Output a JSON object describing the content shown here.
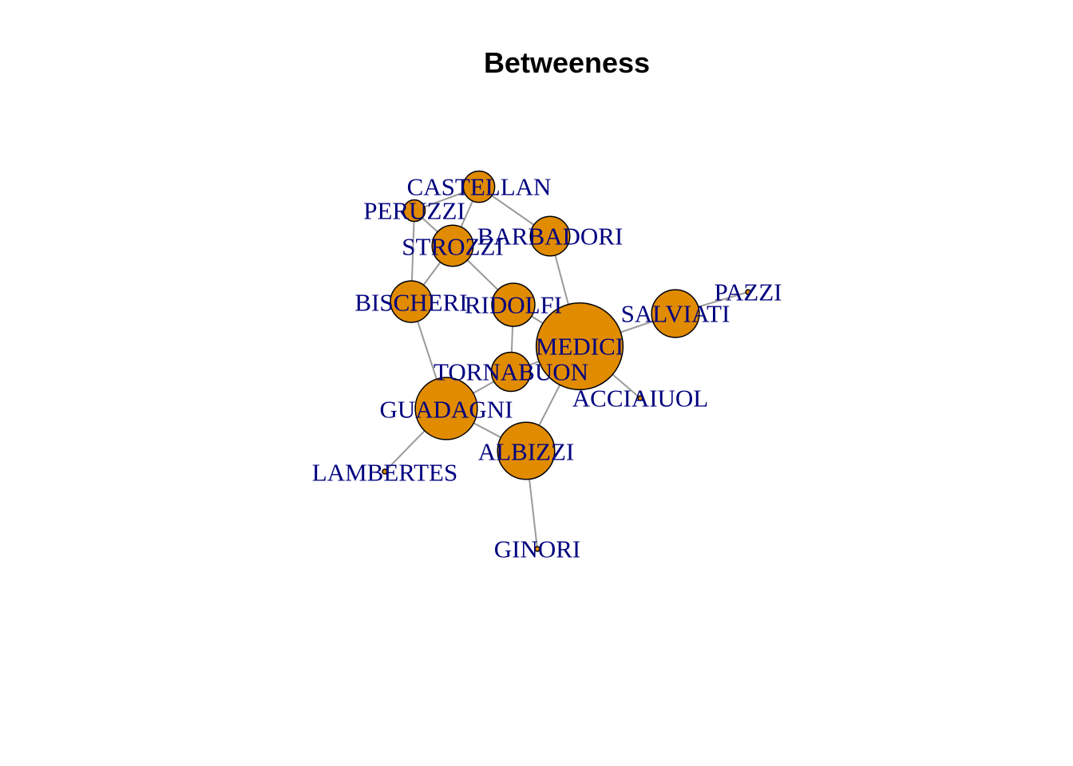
{
  "title": "Betweeness",
  "colors": {
    "node_fill": "#e08b00",
    "edge": "#9a9a9a",
    "label": "#00007f"
  },
  "nodes": [
    {
      "id": "castellan",
      "label": "CASTELLAN",
      "betweenness": 5
    },
    {
      "id": "peruzzi",
      "label": "PERUZZI",
      "betweenness": 2
    },
    {
      "id": "strozzi",
      "label": "STROZZI",
      "betweenness": 9.33
    },
    {
      "id": "barbadori",
      "label": "BARBADORI",
      "betweenness": 8.5
    },
    {
      "id": "bischeri",
      "label": "BISCHERI",
      "betweenness": 9.5
    },
    {
      "id": "ridolfi",
      "label": "RIDOLFI",
      "betweenness": 10.33
    },
    {
      "id": "salviati",
      "label": "SALVIATI",
      "betweenness": 13
    },
    {
      "id": "pazzi",
      "label": "PAZZI",
      "betweenness": 0
    },
    {
      "id": "medici",
      "label": "MEDICI",
      "betweenness": 47.5
    },
    {
      "id": "tornabuon",
      "label": "TORNABUON",
      "betweenness": 8.33
    },
    {
      "id": "acciaiuol",
      "label": "ACCIAIUOL",
      "betweenness": 0
    },
    {
      "id": "guadagni",
      "label": "GUADAGNI",
      "betweenness": 23.17
    },
    {
      "id": "albizzi",
      "label": "ALBIZZI",
      "betweenness": 19.33
    },
    {
      "id": "lambertes",
      "label": "LAMBERTES",
      "betweenness": 0
    },
    {
      "id": "ginori",
      "label": "GINORI",
      "betweenness": 0
    }
  ],
  "edges": [
    [
      "castellan",
      "peruzzi"
    ],
    [
      "castellan",
      "strozzi"
    ],
    [
      "castellan",
      "barbadori"
    ],
    [
      "peruzzi",
      "strozzi"
    ],
    [
      "peruzzi",
      "bischeri"
    ],
    [
      "strozzi",
      "bischeri"
    ],
    [
      "strozzi",
      "ridolfi"
    ],
    [
      "barbadori",
      "medici"
    ],
    [
      "bischeri",
      "guadagni"
    ],
    [
      "ridolfi",
      "medici"
    ],
    [
      "ridolfi",
      "tornabuon"
    ],
    [
      "salviati",
      "medici"
    ],
    [
      "salviati",
      "pazzi"
    ],
    [
      "medici",
      "tornabuon"
    ],
    [
      "medici",
      "acciaiuol"
    ],
    [
      "medici",
      "albizzi"
    ],
    [
      "tornabuon",
      "guadagni"
    ],
    [
      "guadagni",
      "albizzi"
    ],
    [
      "guadagni",
      "lambertes"
    ],
    [
      "albizzi",
      "ginori"
    ]
  ]
}
